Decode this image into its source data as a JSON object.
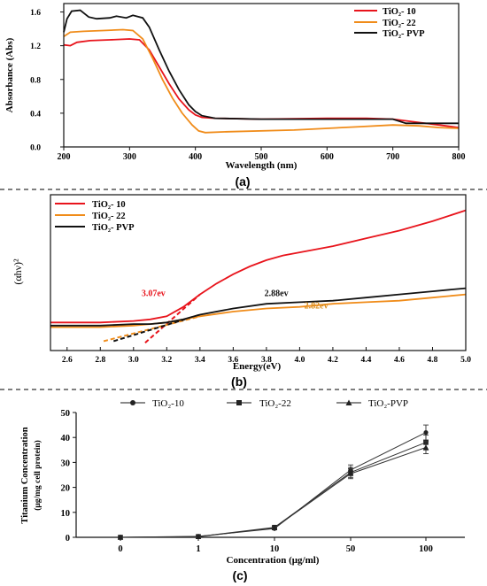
{
  "panels": [
    {
      "id": "a",
      "caption": "(a)",
      "xlabel": "Wavelength (nm)",
      "ylabel": "Absorbance (Abs)",
      "legend": [
        "TiO₂- 10",
        "TiO₂- 22",
        "TiO₂- PVP"
      ]
    },
    {
      "id": "b",
      "caption": "(b)",
      "xlabel": "Energy(eV)",
      "ylabel": "(αhν)²",
      "legend": [
        "TiO₂- 10",
        "TiO₂- 22",
        "TiO₂- PVP"
      ],
      "annotations": [
        "3.07ev",
        "2.88ev",
        "2.82ev"
      ]
    },
    {
      "id": "c",
      "caption": "(c)",
      "xlabel": "Concentration (μg/ml)",
      "ylabel_line1": "Titanium Concentration",
      "ylabel_line2": "(μg/mg cell protein)",
      "legend": [
        "TiO₂-10",
        "TiO₂-22",
        "TiO₂-PVP"
      ]
    }
  ],
  "chart_data": [
    {
      "type": "line",
      "title": "",
      "xlabel": "Wavelength (nm)",
      "ylabel": "Absorbance (Abs)",
      "xlim": [
        200,
        800
      ],
      "ylim": [
        0,
        1.7
      ],
      "xticks": [
        200,
        300,
        400,
        500,
        600,
        700,
        800
      ],
      "yticks": [
        0.0,
        0.4,
        0.8,
        1.2,
        1.6
      ],
      "ytick_labels": [
        "0.0",
        "0.4",
        "0.8",
        "1.2",
        "1.6"
      ],
      "legend_position": "top-right",
      "series": [
        {
          "name": "TiO₂- 10",
          "color": "#e8141c",
          "points": [
            [
              200,
              1.21
            ],
            [
              210,
              1.2
            ],
            [
              220,
              1.24
            ],
            [
              240,
              1.26
            ],
            [
              270,
              1.27
            ],
            [
              300,
              1.28
            ],
            [
              315,
              1.27
            ],
            [
              330,
              1.15
            ],
            [
              345,
              0.95
            ],
            [
              360,
              0.75
            ],
            [
              375,
              0.57
            ],
            [
              390,
              0.44
            ],
            [
              400,
              0.38
            ],
            [
              410,
              0.35
            ],
            [
              430,
              0.34
            ],
            [
              500,
              0.33
            ],
            [
              600,
              0.34
            ],
            [
              660,
              0.34
            ],
            [
              700,
              0.33
            ],
            [
              740,
              0.29
            ],
            [
              770,
              0.26
            ],
            [
              800,
              0.23
            ]
          ]
        },
        {
          "name": "TiO₂- 22",
          "color": "#f08c1a",
          "points": [
            [
              200,
              1.31
            ],
            [
              210,
              1.36
            ],
            [
              230,
              1.37
            ],
            [
              260,
              1.38
            ],
            [
              290,
              1.39
            ],
            [
              305,
              1.38
            ],
            [
              320,
              1.28
            ],
            [
              335,
              1.05
            ],
            [
              350,
              0.8
            ],
            [
              365,
              0.58
            ],
            [
              380,
              0.4
            ],
            [
              395,
              0.26
            ],
            [
              405,
              0.19
            ],
            [
              415,
              0.17
            ],
            [
              450,
              0.18
            ],
            [
              550,
              0.2
            ],
            [
              650,
              0.24
            ],
            [
              700,
              0.26
            ],
            [
              740,
              0.25
            ],
            [
              770,
              0.23
            ],
            [
              800,
              0.22
            ]
          ]
        },
        {
          "name": "TiO₂- PVP",
          "color": "#111111",
          "points": [
            [
              200,
              1.36
            ],
            [
              205,
              1.52
            ],
            [
              212,
              1.61
            ],
            [
              225,
              1.62
            ],
            [
              238,
              1.54
            ],
            [
              250,
              1.52
            ],
            [
              270,
              1.53
            ],
            [
              280,
              1.55
            ],
            [
              295,
              1.53
            ],
            [
              305,
              1.56
            ],
            [
              320,
              1.53
            ],
            [
              330,
              1.42
            ],
            [
              345,
              1.15
            ],
            [
              360,
              0.9
            ],
            [
              375,
              0.68
            ],
            [
              390,
              0.5
            ],
            [
              400,
              0.42
            ],
            [
              410,
              0.37
            ],
            [
              430,
              0.34
            ],
            [
              500,
              0.33
            ],
            [
              700,
              0.33
            ],
            [
              720,
              0.28
            ],
            [
              800,
              0.28
            ]
          ]
        }
      ]
    },
    {
      "type": "line",
      "title": "",
      "xlabel": "Energy(eV)",
      "ylabel": "(αhν)²",
      "xlim": [
        2.5,
        5.0
      ],
      "ylim": [
        0,
        1
      ],
      "xticks": [
        2.6,
        2.8,
        3.0,
        3.2,
        3.4,
        3.6,
        3.8,
        4.0,
        4.2,
        4.4,
        4.6,
        4.8,
        5.0
      ],
      "xtick_labels": [
        "2.6",
        "2.8",
        "3.0",
        "3.2",
        "3.4",
        "3.6",
        "3.8",
        "4.0",
        "4.2",
        "4.4",
        "4.6",
        "4.8",
        "5.0"
      ],
      "y_unlabeled": true,
      "legend_position": "top-left",
      "series": [
        {
          "name": "TiO₂- 10",
          "color": "#e8141c",
          "points": [
            [
              2.5,
              0.18
            ],
            [
              2.8,
              0.18
            ],
            [
              3.0,
              0.19
            ],
            [
              3.1,
              0.2
            ],
            [
              3.2,
              0.22
            ],
            [
              3.3,
              0.28
            ],
            [
              3.4,
              0.36
            ],
            [
              3.5,
              0.43
            ],
            [
              3.6,
              0.49
            ],
            [
              3.7,
              0.54
            ],
            [
              3.8,
              0.58
            ],
            [
              3.9,
              0.61
            ],
            [
              4.0,
              0.63
            ],
            [
              4.2,
              0.67
            ],
            [
              4.4,
              0.72
            ],
            [
              4.6,
              0.77
            ],
            [
              4.8,
              0.83
            ],
            [
              5.0,
              0.9
            ]
          ]
        },
        {
          "name": "TiO₂- 22",
          "color": "#f08c1a",
          "points": [
            [
              2.5,
              0.15
            ],
            [
              2.8,
              0.15
            ],
            [
              3.0,
              0.16
            ],
            [
              3.1,
              0.17
            ],
            [
              3.2,
              0.18
            ],
            [
              3.3,
              0.2
            ],
            [
              3.4,
              0.22
            ],
            [
              3.6,
              0.25
            ],
            [
              3.8,
              0.27
            ],
            [
              4.0,
              0.28
            ],
            [
              4.2,
              0.3
            ],
            [
              4.4,
              0.31
            ],
            [
              4.6,
              0.32
            ],
            [
              4.8,
              0.34
            ],
            [
              5.0,
              0.36
            ]
          ]
        },
        {
          "name": "TiO₂- PVP",
          "color": "#111111",
          "points": [
            [
              2.5,
              0.16
            ],
            [
              2.8,
              0.16
            ],
            [
              3.0,
              0.17
            ],
            [
              3.1,
              0.17
            ],
            [
              3.2,
              0.18
            ],
            [
              3.3,
              0.2
            ],
            [
              3.4,
              0.23
            ],
            [
              3.6,
              0.27
            ],
            [
              3.8,
              0.3
            ],
            [
              4.0,
              0.31
            ],
            [
              4.2,
              0.32
            ],
            [
              4.4,
              0.34
            ],
            [
              4.6,
              0.36
            ],
            [
              4.8,
              0.38
            ],
            [
              5.0,
              0.4
            ]
          ]
        }
      ],
      "tangents": [
        {
          "color": "#e8141c",
          "from": [
            3.07,
            0.05
          ],
          "to": [
            3.4,
            0.36
          ]
        },
        {
          "color": "#f08c1a",
          "from": [
            2.82,
            0.06
          ],
          "to": [
            3.4,
            0.22
          ]
        },
        {
          "color": "#111111",
          "from": [
            2.88,
            0.06
          ],
          "to": [
            3.4,
            0.23
          ]
        }
      ],
      "annotations": [
        {
          "text": "3.07ev",
          "x": 3.12,
          "y": 0.35,
          "color": "#e8141c"
        },
        {
          "text": "2.88ev",
          "x": 3.86,
          "y": 0.35,
          "color": "#111111"
        },
        {
          "text": "2.82ev",
          "x": 4.1,
          "y": 0.27,
          "color": "#d98c1a"
        }
      ]
    },
    {
      "type": "line",
      "title": "",
      "xlabel": "Concentration (μg/ml)",
      "ylabel": "Titanium Concentration (μg/mg cell protein)",
      "categories": [
        "0",
        "1",
        "10",
        "50",
        "100"
      ],
      "ylim": [
        0,
        50
      ],
      "yticks": [
        0,
        10,
        20,
        30,
        40,
        50
      ],
      "legend_position": "top",
      "series": [
        {
          "name": "TiO₂-10",
          "marker": "circle",
          "values": [
            0,
            0.4,
            3.5,
            27,
            42
          ],
          "errors": [
            0,
            0.2,
            0.5,
            2,
            3
          ]
        },
        {
          "name": "TiO₂-22",
          "marker": "square",
          "values": [
            0,
            0.3,
            4.0,
            26,
            38
          ],
          "errors": [
            0,
            0.2,
            0.5,
            2,
            3
          ]
        },
        {
          "name": "TiO₂-PVP",
          "marker": "triangle",
          "values": [
            0,
            0.2,
            3.8,
            25.5,
            36
          ],
          "errors": [
            0,
            0.2,
            0.5,
            2,
            2.5
          ]
        }
      ]
    }
  ]
}
